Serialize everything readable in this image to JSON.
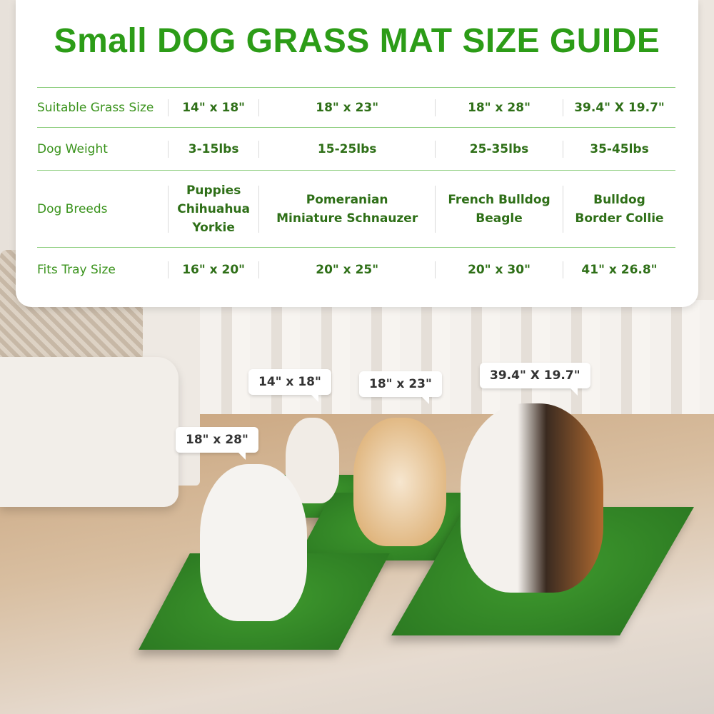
{
  "title": "Small DOG GRASS MAT SIZE GUIDE",
  "colors": {
    "title": "#2c9c17",
    "label": "#3a931c",
    "value": "#2e6f17",
    "rule": "#8fcf80"
  },
  "table": {
    "rows": [
      {
        "label": "Suitable Grass Size",
        "values": [
          "14\" x 18\"",
          "18\" x 23\"",
          "18\" x 28\"",
          "39.4\" X 19.7\""
        ]
      },
      {
        "label": "Dog Weight",
        "values": [
          "3-15lbs",
          "15-25lbs",
          "25-35lbs",
          "35-45lbs"
        ]
      },
      {
        "label": "Dog Breeds",
        "values": [
          [
            "Puppies",
            "Chihuahua",
            "Yorkie"
          ],
          [
            "Pomeranian",
            "Miniature Schnauzer"
          ],
          [
            "French Bulldog",
            "Beagle"
          ],
          [
            "Bulldog",
            "Border Collie"
          ]
        ]
      },
      {
        "label": "Fits Tray Size",
        "values": [
          "16\" x 20\"",
          "20\" x 25\"",
          "20\" x 30\"",
          "41\" x 26.8\""
        ]
      }
    ]
  },
  "bubbles": [
    "14\" x 18\"",
    "18\" x 23\"",
    "39.4\" X 19.7\"",
    "18\" x 28\""
  ]
}
